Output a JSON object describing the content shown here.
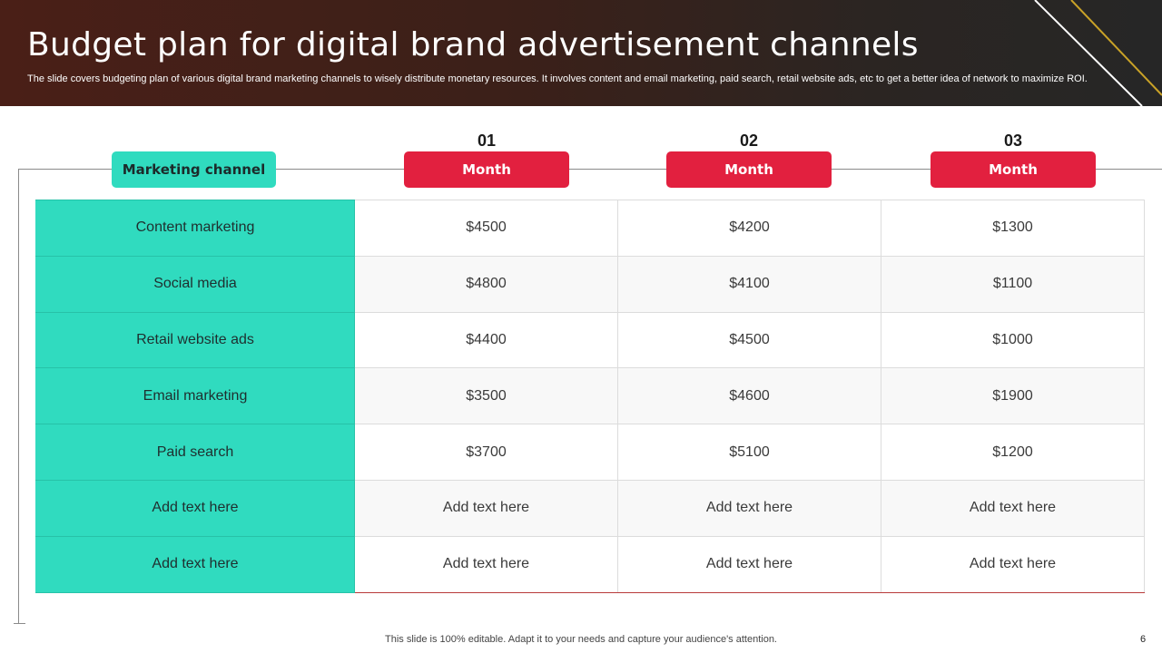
{
  "slide": {
    "title": "Budget plan for digital brand advertisement channels",
    "subtitle": "The slide covers budgeting plan of various digital brand marketing channels to wisely distribute monetary resources. It involves content and email marketing, paid search, retail website ads, etc to get a better idea of  network to maximize ROI.",
    "footer": "This slide is 100% editable. Adapt it to your needs and capture your audience's attention.",
    "page_number": "6"
  },
  "table": {
    "row_header_label": "Marketing channel",
    "columns": [
      {
        "number": "01",
        "label": "Month"
      },
      {
        "number": "02",
        "label": "Month"
      },
      {
        "number": "03",
        "label": "Month"
      }
    ],
    "rows": [
      {
        "channel": "Content marketing",
        "values": [
          "$4500",
          "$4200",
          "$1300"
        ]
      },
      {
        "channel": "Social media",
        "values": [
          "$4800",
          "$4100",
          "$1100"
        ]
      },
      {
        "channel": "Retail website ads",
        "values": [
          "$4400",
          "$4500",
          "$1000"
        ]
      },
      {
        "channel": "Email marketing",
        "values": [
          "$3500",
          "$4600",
          "$1900"
        ]
      },
      {
        "channel": "Paid search",
        "values": [
          "$3700",
          "$5100",
          "$1200"
        ]
      },
      {
        "channel": "Add text here",
        "values": [
          "Add text here",
          "Add text here",
          "Add text here"
        ]
      },
      {
        "channel": "Add text here",
        "values": [
          "Add text here",
          "Add text here",
          "Add text here"
        ]
      }
    ]
  },
  "colors": {
    "header_bg": "#3b2019",
    "teal": "#30dbbf",
    "red": "#e2203f",
    "accent_line": "#c9a227"
  }
}
